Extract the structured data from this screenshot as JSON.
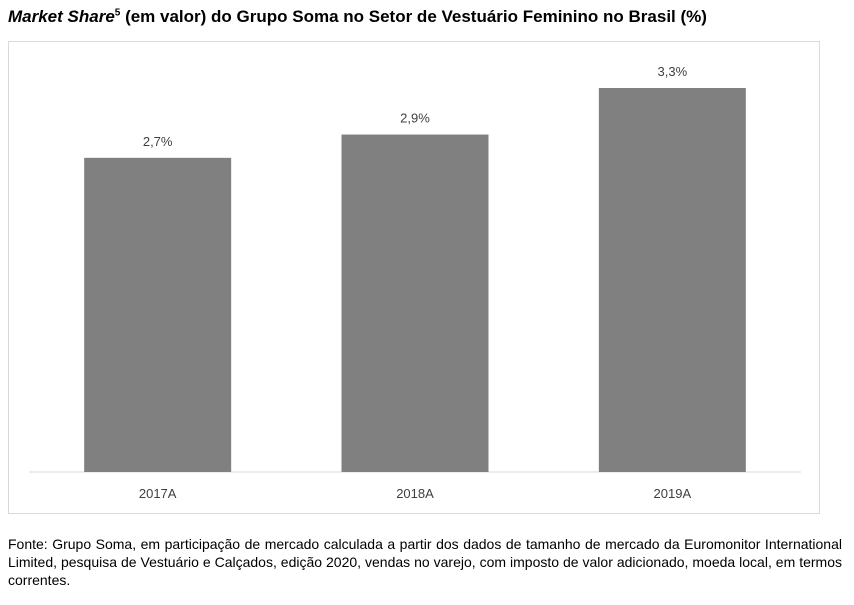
{
  "title": {
    "italic_part": "Market Share",
    "superscript": "5",
    "rest": " (em valor) do Grupo Soma no Setor de Vestuário Feminino no Brasil (%)"
  },
  "chart_data": {
    "type": "bar",
    "categories": [
      "2017A",
      "2018A",
      "2019A"
    ],
    "values": [
      2.7,
      2.9,
      3.3
    ],
    "data_labels": [
      "2,7%",
      "2,9%",
      "3,3%"
    ],
    "ylim": [
      0,
      3.5
    ],
    "grid": false,
    "legend": "none",
    "bar_color": "#808080"
  },
  "source": "Fonte: Grupo Soma, em participação de mercado calculada a partir dos dados de tamanho de mercado da Euromonitor International Limited, pesquisa de Vestuário e Calçados, edição 2020, vendas no varejo, com imposto de valor adicionado, moeda local, em termos correntes."
}
